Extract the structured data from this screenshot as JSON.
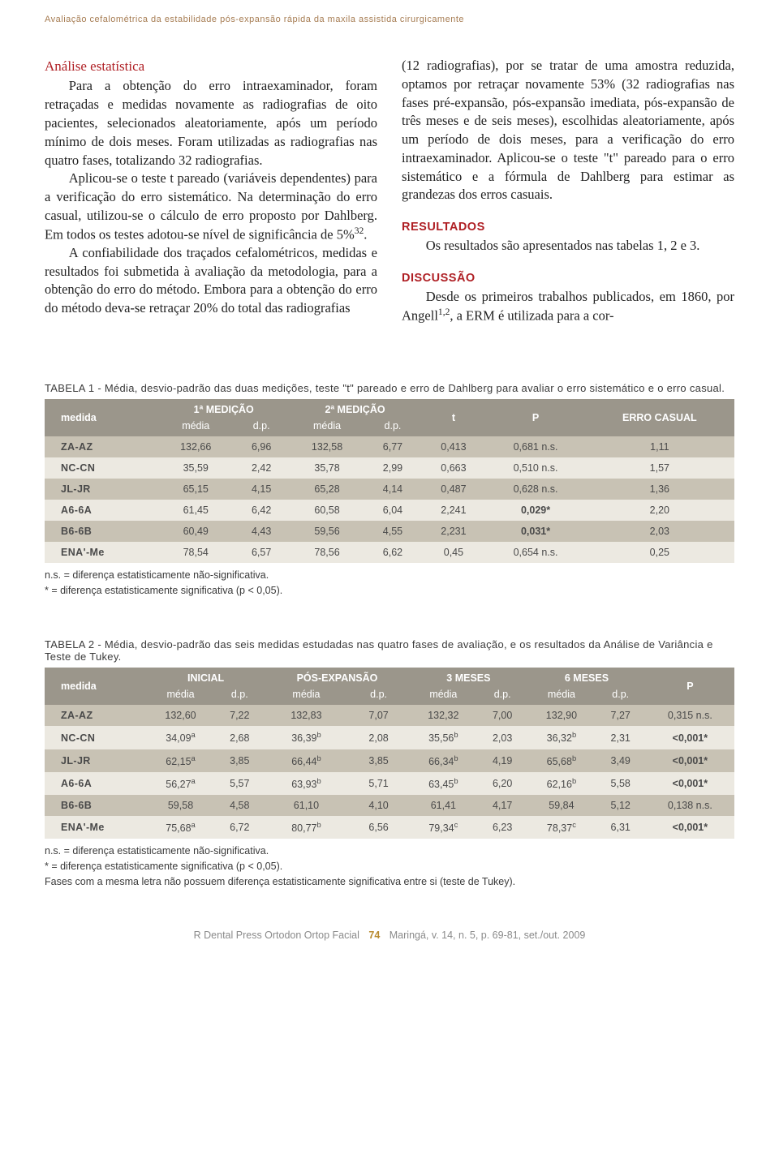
{
  "runningTitle": "Avaliação cefalométrica da estabilidade pós-expansão rápida da maxila assistida cirurgicamente",
  "colLeft": {
    "heading": "Análise estatística",
    "p1": "Para a obtenção do erro intraexaminador, foram retraçadas e medidas novamente as radiografias de oito pacientes, selecionados aleatoriamente, após um período mínimo de dois meses. Foram utilizadas as radiografias nas quatro fases, totalizando 32 radiografias.",
    "p2a": "Aplicou-se o teste t pareado (variáveis dependentes) para a verificação do erro sistemático. Na determinação do erro casual, utilizou-se o cálculo de erro proposto por Dahlberg. Em todos os testes adotou-se nível de significância de 5%",
    "p2b": ".",
    "p3": "A confiabilidade dos traçados cefalométricos, medidas e resultados foi submetida à avaliação da metodologia, para a obtenção do erro do método. Embora para a obtenção do erro do método deva-se retraçar 20% do total das radiografias"
  },
  "colRight": {
    "p1": "(12 radiografias), por se tratar de uma amostra reduzida, optamos por retraçar novamente 53% (32 radiografias nas fases pré-expansão, pós-expansão imediata, pós-expansão de três meses e de seis meses), escolhidas aleatoriamente, após um período de dois meses, para a verificação do erro intraexaminador. Aplicou-se o teste \"t\" pareado para o erro sistemático e a fórmula de Dahlberg para estimar as grandezas dos erros casuais.",
    "hRes": "RESULTADOS",
    "pRes": "Os resultados são apresentados nas tabelas 1, 2 e 3.",
    "hDisc": "DISCUSSÃO",
    "pDisc_a": "Desde os primeiros trabalhos publicados, em 1860, por Angell",
    "pDisc_b": ", a ERM é utilizada para a cor-"
  },
  "table1": {
    "caption": "TABELA 1 - Média, desvio-padrão das duas medições, teste \"t\" pareado e erro de Dahlberg para avaliar o erro sistemático e o erro casual.",
    "groupHeaders": [
      "1ª MEDIÇÃO",
      "2ª MEDIÇÃO"
    ],
    "simpleHeaders": {
      "medida": "medida",
      "t": "t",
      "P": "P",
      "erro": "ERRO CASUAL"
    },
    "subHeaders": [
      "média",
      "d.p.",
      "média",
      "d.p."
    ],
    "rows": [
      [
        "ZA-AZ",
        "132,66",
        "6,96",
        "132,58",
        "6,77",
        "0,413",
        "0,681 n.s.",
        "1,11"
      ],
      [
        "NC-CN",
        "35,59",
        "2,42",
        "35,78",
        "2,99",
        "0,663",
        "0,510 n.s.",
        "1,57"
      ],
      [
        "JL-JR",
        "65,15",
        "4,15",
        "65,28",
        "4,14",
        "0,487",
        "0,628 n.s.",
        "1,36"
      ],
      [
        "A6-6A",
        "61,45",
        "6,42",
        "60,58",
        "6,04",
        "2,241",
        "0,029*",
        "2,20"
      ],
      [
        "B6-6B",
        "60,49",
        "4,43",
        "59,56",
        "4,55",
        "2,231",
        "0,031*",
        "2,03"
      ],
      [
        "ENA'-Me",
        "78,54",
        "6,57",
        "78,56",
        "6,62",
        "0,45",
        "0,654 n.s.",
        "0,25"
      ]
    ],
    "boldP": [
      3,
      4
    ],
    "footnotes": [
      "n.s. = diferença estatisticamente não-significativa.",
      "* = diferença estatisticamente significativa (p < 0,05)."
    ]
  },
  "table2": {
    "caption": "TABELA 2 - Média, desvio-padrão das seis medidas estudadas nas quatro fases de avaliação, e os resultados da Análise de Variância e Teste de Tukey.",
    "groupHeaders": [
      "INICIAL",
      "PÓS-EXPANSÃO",
      "3 MESES",
      "6 MESES"
    ],
    "simpleHeaders": {
      "medida": "medida",
      "P": "P"
    },
    "subHeaders": [
      "média",
      "d.p.",
      "média",
      "d.p.",
      "média",
      "d.p.",
      "média",
      "d.p."
    ],
    "rows": [
      [
        "ZA-AZ",
        "132,60",
        "",
        "7,22",
        "132,83",
        "",
        "7,07",
        "132,32",
        "",
        "7,00",
        "132,90",
        "",
        "7,27",
        "0,315 n.s."
      ],
      [
        "NC-CN",
        "34,09",
        "a",
        "2,68",
        "36,39",
        "b",
        "2,08",
        "35,56",
        "b",
        "2,03",
        "36,32",
        "b",
        "2,31",
        "<0,001*"
      ],
      [
        "JL-JR",
        "62,15",
        "a",
        "3,85",
        "66,44",
        "b",
        "3,85",
        "66,34",
        "b",
        "4,19",
        "65,68",
        "b",
        "3,49",
        "<0,001*"
      ],
      [
        "A6-6A",
        "56,27",
        "a",
        "5,57",
        "63,93",
        "b",
        "5,71",
        "63,45",
        "b",
        "6,20",
        "62,16",
        "b",
        "5,58",
        "<0,001*"
      ],
      [
        "B6-6B",
        "59,58",
        "",
        "4,58",
        "61,10",
        "",
        "4,10",
        "61,41",
        "",
        "4,17",
        "59,84",
        "",
        "5,12",
        "0,138 n.s."
      ],
      [
        "ENA'-Me",
        "75,68",
        "a",
        "6,72",
        "80,77",
        "b",
        "6,56",
        "79,34",
        "c",
        "6,23",
        "78,37",
        "c",
        "6,31",
        "<0,001*"
      ]
    ],
    "boldP": [
      1,
      2,
      3,
      5
    ],
    "footnotes": [
      "n.s. = diferença estatisticamente não-significativa.",
      "* = diferença estatisticamente significativa (p < 0,05).",
      "Fases com a mesma letra não possuem diferença estatisticamente significativa entre si (teste de Tukey)."
    ]
  },
  "footer": {
    "journal": "R Dental Press Ortodon Ortop Facial",
    "page": "74",
    "issue": "Maringá, v. 14, n. 5, p. 69-81, set./out. 2009"
  },
  "style": {
    "headerBg": "#9b968b",
    "rowDark": "#c8c2b4",
    "rowLight": "#ece9e1",
    "accentRed": "#af1f24"
  }
}
